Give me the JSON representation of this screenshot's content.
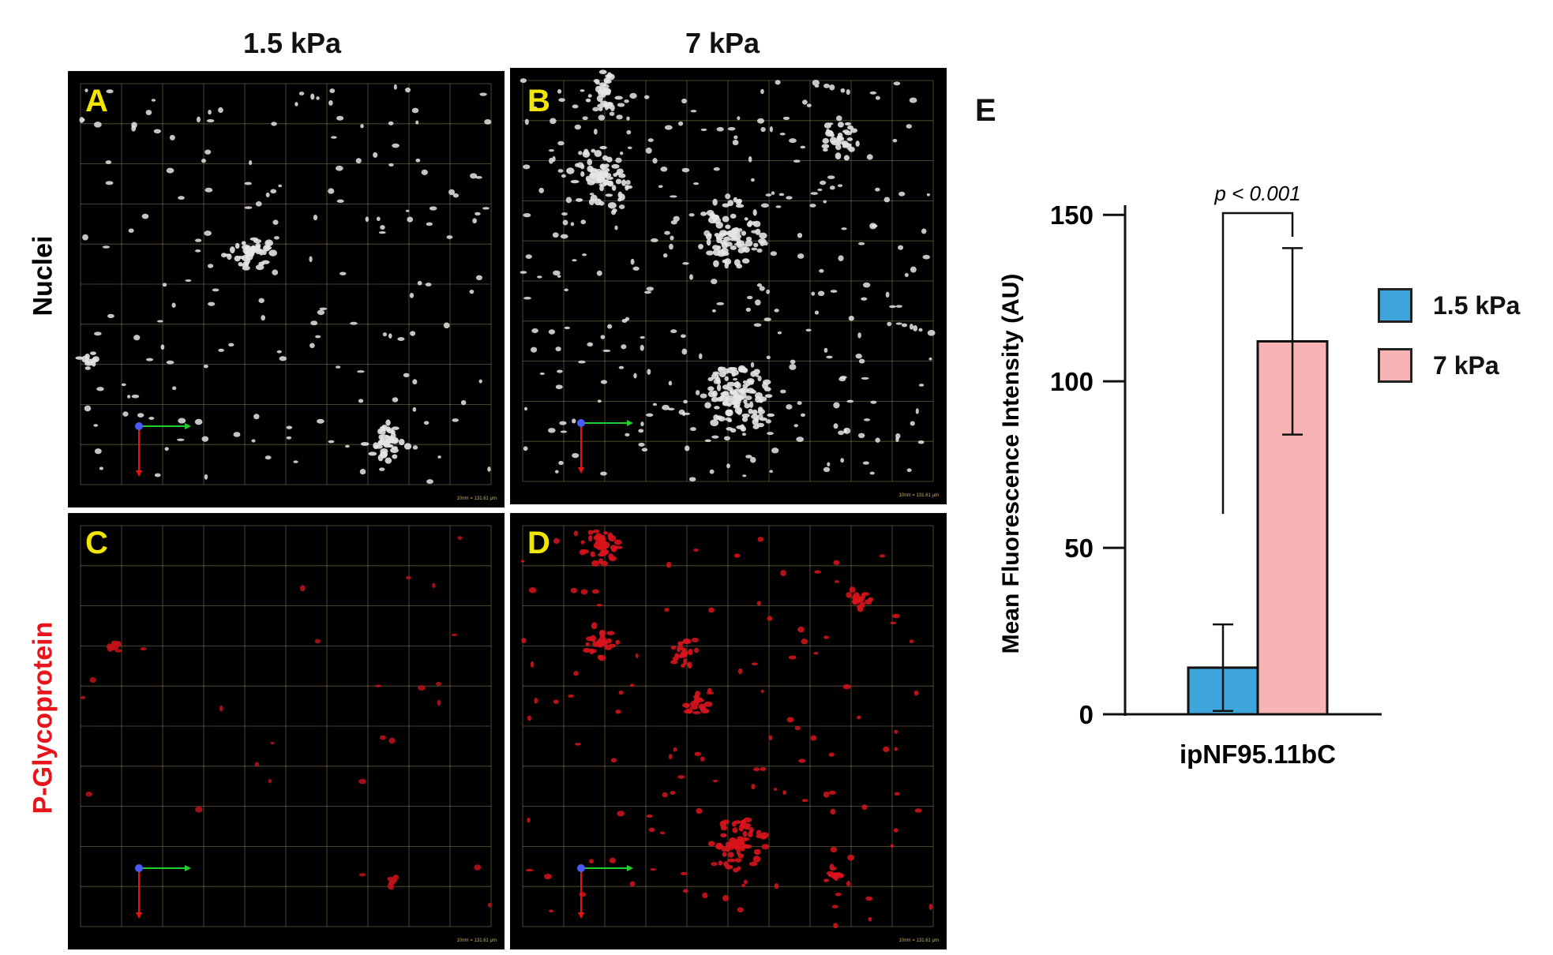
{
  "columns": {
    "left": "1.5 kPa",
    "right": "7 kPa"
  },
  "rows": {
    "top": "Nuclei",
    "bottom": "P-Glycoprotein"
  },
  "row_colors": {
    "top": "#000000",
    "bottom": "#e8141b"
  },
  "panels": {
    "A": {
      "letter": "A",
      "scale": "10nm = 131.61 µm"
    },
    "B": {
      "letter": "B",
      "scale": "10nm = 131.61 µm"
    },
    "C": {
      "letter": "C",
      "scale": "10nm = 131.61 µm"
    },
    "D": {
      "letter": "D",
      "scale": "10nm = 131.61 µm"
    }
  },
  "panel_E_label": "E",
  "chart_data": {
    "type": "bar",
    "categories": [
      "ipNF95.11bC"
    ],
    "series": [
      {
        "name": "1.5 kPa",
        "values": [
          14
        ],
        "error": [
          13
        ],
        "color": "#3ea6dc"
      },
      {
        "name": "7 kPa",
        "values": [
          112
        ],
        "error": [
          28
        ],
        "color": "#f8b4b4"
      }
    ],
    "ylabel": "Mean Fluorescence Intensity (AU)",
    "xlabel": "",
    "yticks": [
      0,
      50,
      100,
      150
    ],
    "ylim": [
      0,
      160
    ],
    "annotation": "p < 0.001",
    "legend": "right"
  }
}
